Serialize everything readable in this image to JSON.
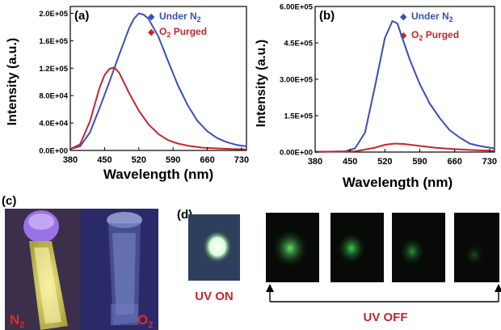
{
  "chart_data": [
    {
      "type": "line",
      "panel_label": "(a)",
      "xlabel": "Wavelength (nm)",
      "ylabel": "Intensity (a.u.)",
      "xlim": [
        380,
        740
      ],
      "ylim": [
        0,
        210000
      ],
      "x_ticks": [
        "380",
        "450",
        "520",
        "590",
        "660",
        "730"
      ],
      "y_ticks": [
        "0.0E+00",
        "4.0E+04",
        "8.0E+04",
        "1.2E+05",
        "1.6E+05",
        "2.0E+05"
      ],
      "legend_position": "top-right",
      "series": [
        {
          "name": "Under N",
          "subscript": "2",
          "color": "#3a4fb8",
          "marker": "◆",
          "x": [
            380,
            400,
            420,
            440,
            460,
            480,
            500,
            510,
            520,
            530,
            540,
            560,
            580,
            600,
            620,
            640,
            660,
            680,
            700,
            720,
            740
          ],
          "y": [
            2000,
            6000,
            26000,
            62000,
            100000,
            140000,
            178000,
            192000,
            200000,
            198000,
            192000,
            166000,
            130000,
            95000,
            66000,
            43000,
            28000,
            18000,
            12000,
            8000,
            6000
          ]
        },
        {
          "name": "Purged",
          "prefix": "O",
          "subscript": "2",
          "color": "#c4262e",
          "marker": "◆",
          "x": [
            380,
            400,
            420,
            440,
            450,
            460,
            470,
            480,
            500,
            520,
            540,
            560,
            580,
            600,
            620,
            650,
            680,
            710,
            740
          ],
          "y": [
            2000,
            9000,
            42000,
            92000,
            110000,
            119000,
            121000,
            113000,
            84000,
            58000,
            38000,
            24000,
            15000,
            10000,
            7000,
            4000,
            3000,
            2000,
            1500
          ]
        }
      ]
    },
    {
      "type": "line",
      "panel_label": "(b)",
      "xlabel": "Wavelength (nm)",
      "ylabel": "Intensity (a.u.)",
      "xlim": [
        380,
        740
      ],
      "ylim": [
        0,
        600000
      ],
      "x_ticks": [
        "380",
        "450",
        "520",
        "590",
        "660",
        "730"
      ],
      "y_ticks": [
        "0.00E+00",
        "1.5E+05",
        "3.00E+05",
        "4.5E+05",
        "6.00E+05"
      ],
      "legend_position": "top-right",
      "series": [
        {
          "name": "Under N",
          "subscript": "2",
          "color": "#3a4fb8",
          "marker": "◆",
          "x": [
            380,
            440,
            460,
            480,
            500,
            520,
            535,
            545,
            555,
            570,
            590,
            610,
            630,
            650,
            670,
            690,
            710,
            740
          ],
          "y": [
            1000,
            3000,
            15000,
            80000,
            270000,
            470000,
            540000,
            530000,
            470000,
            380000,
            280000,
            200000,
            140000,
            90000,
            60000,
            35000,
            25000,
            15000
          ]
        },
        {
          "name": "Purged",
          "prefix": "O",
          "subscript": "2",
          "color": "#c4262e",
          "marker": "◆",
          "x": [
            380,
            460,
            500,
            520,
            540,
            560,
            580,
            620,
            660,
            700,
            740
          ],
          "y": [
            500,
            3000,
            18000,
            30000,
            35000,
            33000,
            28000,
            18000,
            12000,
            8000,
            5000
          ]
        }
      ]
    }
  ],
  "panel_c": {
    "label": "(c)",
    "vial_left_label": "N",
    "vial_left_sub": "2",
    "vial_right_label": "O",
    "vial_right_sub": "2"
  },
  "panel_d": {
    "label": "(d)",
    "uv_on": "UV ON",
    "uv_off": "UV OFF"
  }
}
